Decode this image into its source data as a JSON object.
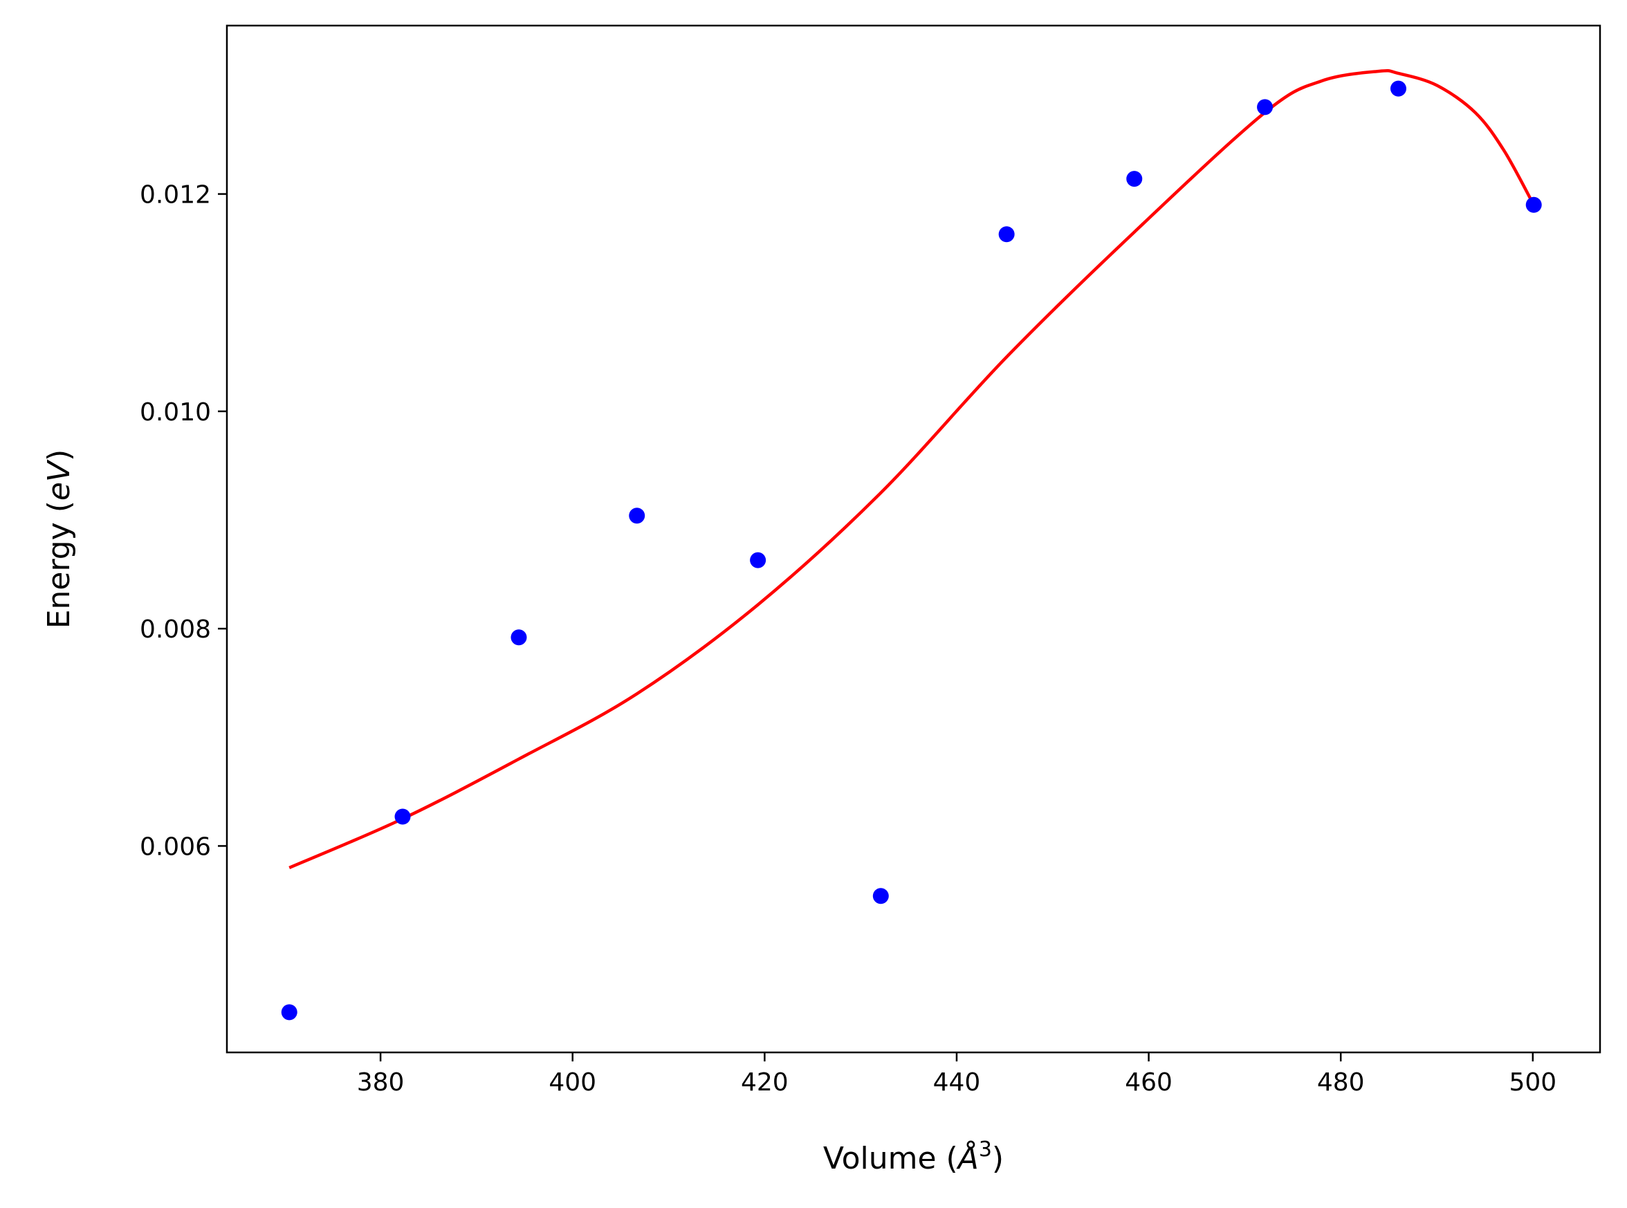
{
  "chart_data": {
    "type": "scatter",
    "title": "",
    "xlabel": {
      "pre": "Volume (",
      "sym": "Å",
      "sup": "3",
      "post": ")"
    },
    "ylabel": {
      "pre": "Energy (",
      "ital": "eV",
      "post": ")"
    },
    "xlim": [
      364,
      507
    ],
    "ylim": [
      0.0041,
      0.01355
    ],
    "xticks": [
      380,
      400,
      420,
      440,
      460,
      480,
      500
    ],
    "xtick_labels": [
      "380",
      "400",
      "420",
      "440",
      "460",
      "480",
      "500"
    ],
    "yticks": [
      0.006,
      0.008,
      0.01,
      0.012
    ],
    "ytick_labels": [
      "0.006",
      "0.008",
      "0.010",
      "0.012"
    ],
    "grid": false,
    "legend": "none",
    "series": [
      {
        "kind": "points",
        "color": "#0000ff",
        "points": [
          [
            370.5,
            0.00447
          ],
          [
            382.3,
            0.00627
          ],
          [
            394.4,
            0.00792
          ],
          [
            406.7,
            0.00904
          ],
          [
            419.3,
            0.00863
          ],
          [
            432.1,
            0.00554
          ],
          [
            445.2,
            0.01163
          ],
          [
            458.5,
            0.01214
          ],
          [
            472.1,
            0.0128
          ],
          [
            486.0,
            0.01297
          ],
          [
            500.1,
            0.0119
          ]
        ]
      },
      {
        "kind": "fit",
        "color": "#ff0000",
        "points": [
          [
            370.5,
            0.0058
          ],
          [
            382.3,
            0.00625
          ],
          [
            394.4,
            0.0068
          ],
          [
            406.7,
            0.0074
          ],
          [
            419.3,
            0.00822
          ],
          [
            432.1,
            0.00925
          ],
          [
            445.2,
            0.0105
          ],
          [
            458.5,
            0.01165
          ],
          [
            472.1,
            0.01275
          ],
          [
            478.0,
            0.01304
          ],
          [
            484.0,
            0.01313
          ],
          [
            486.0,
            0.01311
          ],
          [
            490.0,
            0.013
          ],
          [
            494.0,
            0.01275
          ],
          [
            497.0,
            0.0124
          ],
          [
            500.1,
            0.0119
          ]
        ]
      }
    ]
  }
}
